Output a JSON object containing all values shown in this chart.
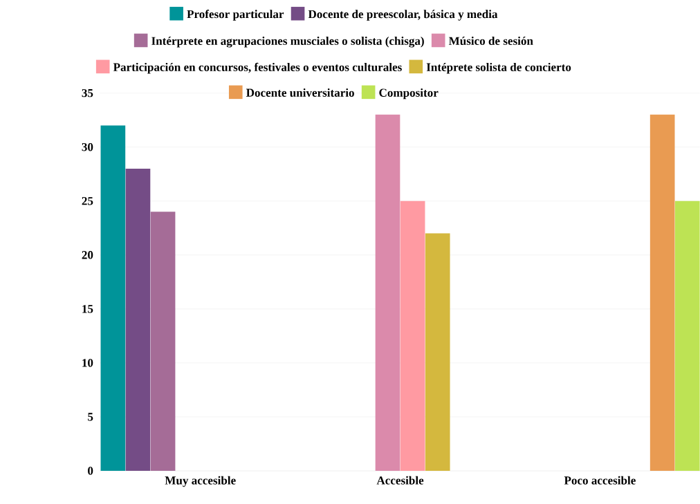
{
  "chart_data": {
    "type": "bar",
    "categories": [
      "Muy accesible",
      "Accesible",
      "Poco accesible"
    ],
    "series": [
      {
        "name": "Profesor particular",
        "color": "#009499",
        "values": [
          32,
          null,
          null
        ]
      },
      {
        "name": "Docente de preescolar, básica y media",
        "color": "#744c86",
        "values": [
          28,
          null,
          null
        ]
      },
      {
        "name": "Intérprete en agrupaciones musciales o solista (chisga)",
        "color": "#a56c97",
        "values": [
          24,
          null,
          null
        ]
      },
      {
        "name": "Músico de sesión",
        "color": "#db8aab",
        "values": [
          null,
          33,
          null
        ]
      },
      {
        "name": "Participación en concursos, festivales o eventos culturales",
        "color": "#ff9aa2",
        "values": [
          null,
          25,
          null
        ]
      },
      {
        "name": "Intéprete solista de concierto",
        "color": "#d4b83e",
        "values": [
          null,
          22,
          null
        ]
      },
      {
        "name": "Docente universitario",
        "color": "#e99b52",
        "values": [
          null,
          null,
          33
        ]
      },
      {
        "name": "Compositor",
        "color": "#bde354",
        "values": [
          null,
          null,
          25
        ]
      }
    ],
    "ylim": [
      0,
      35
    ],
    "yticks": [
      0,
      5,
      10,
      15,
      20,
      25,
      30,
      35
    ],
    "grid": "y",
    "legend": "top"
  }
}
